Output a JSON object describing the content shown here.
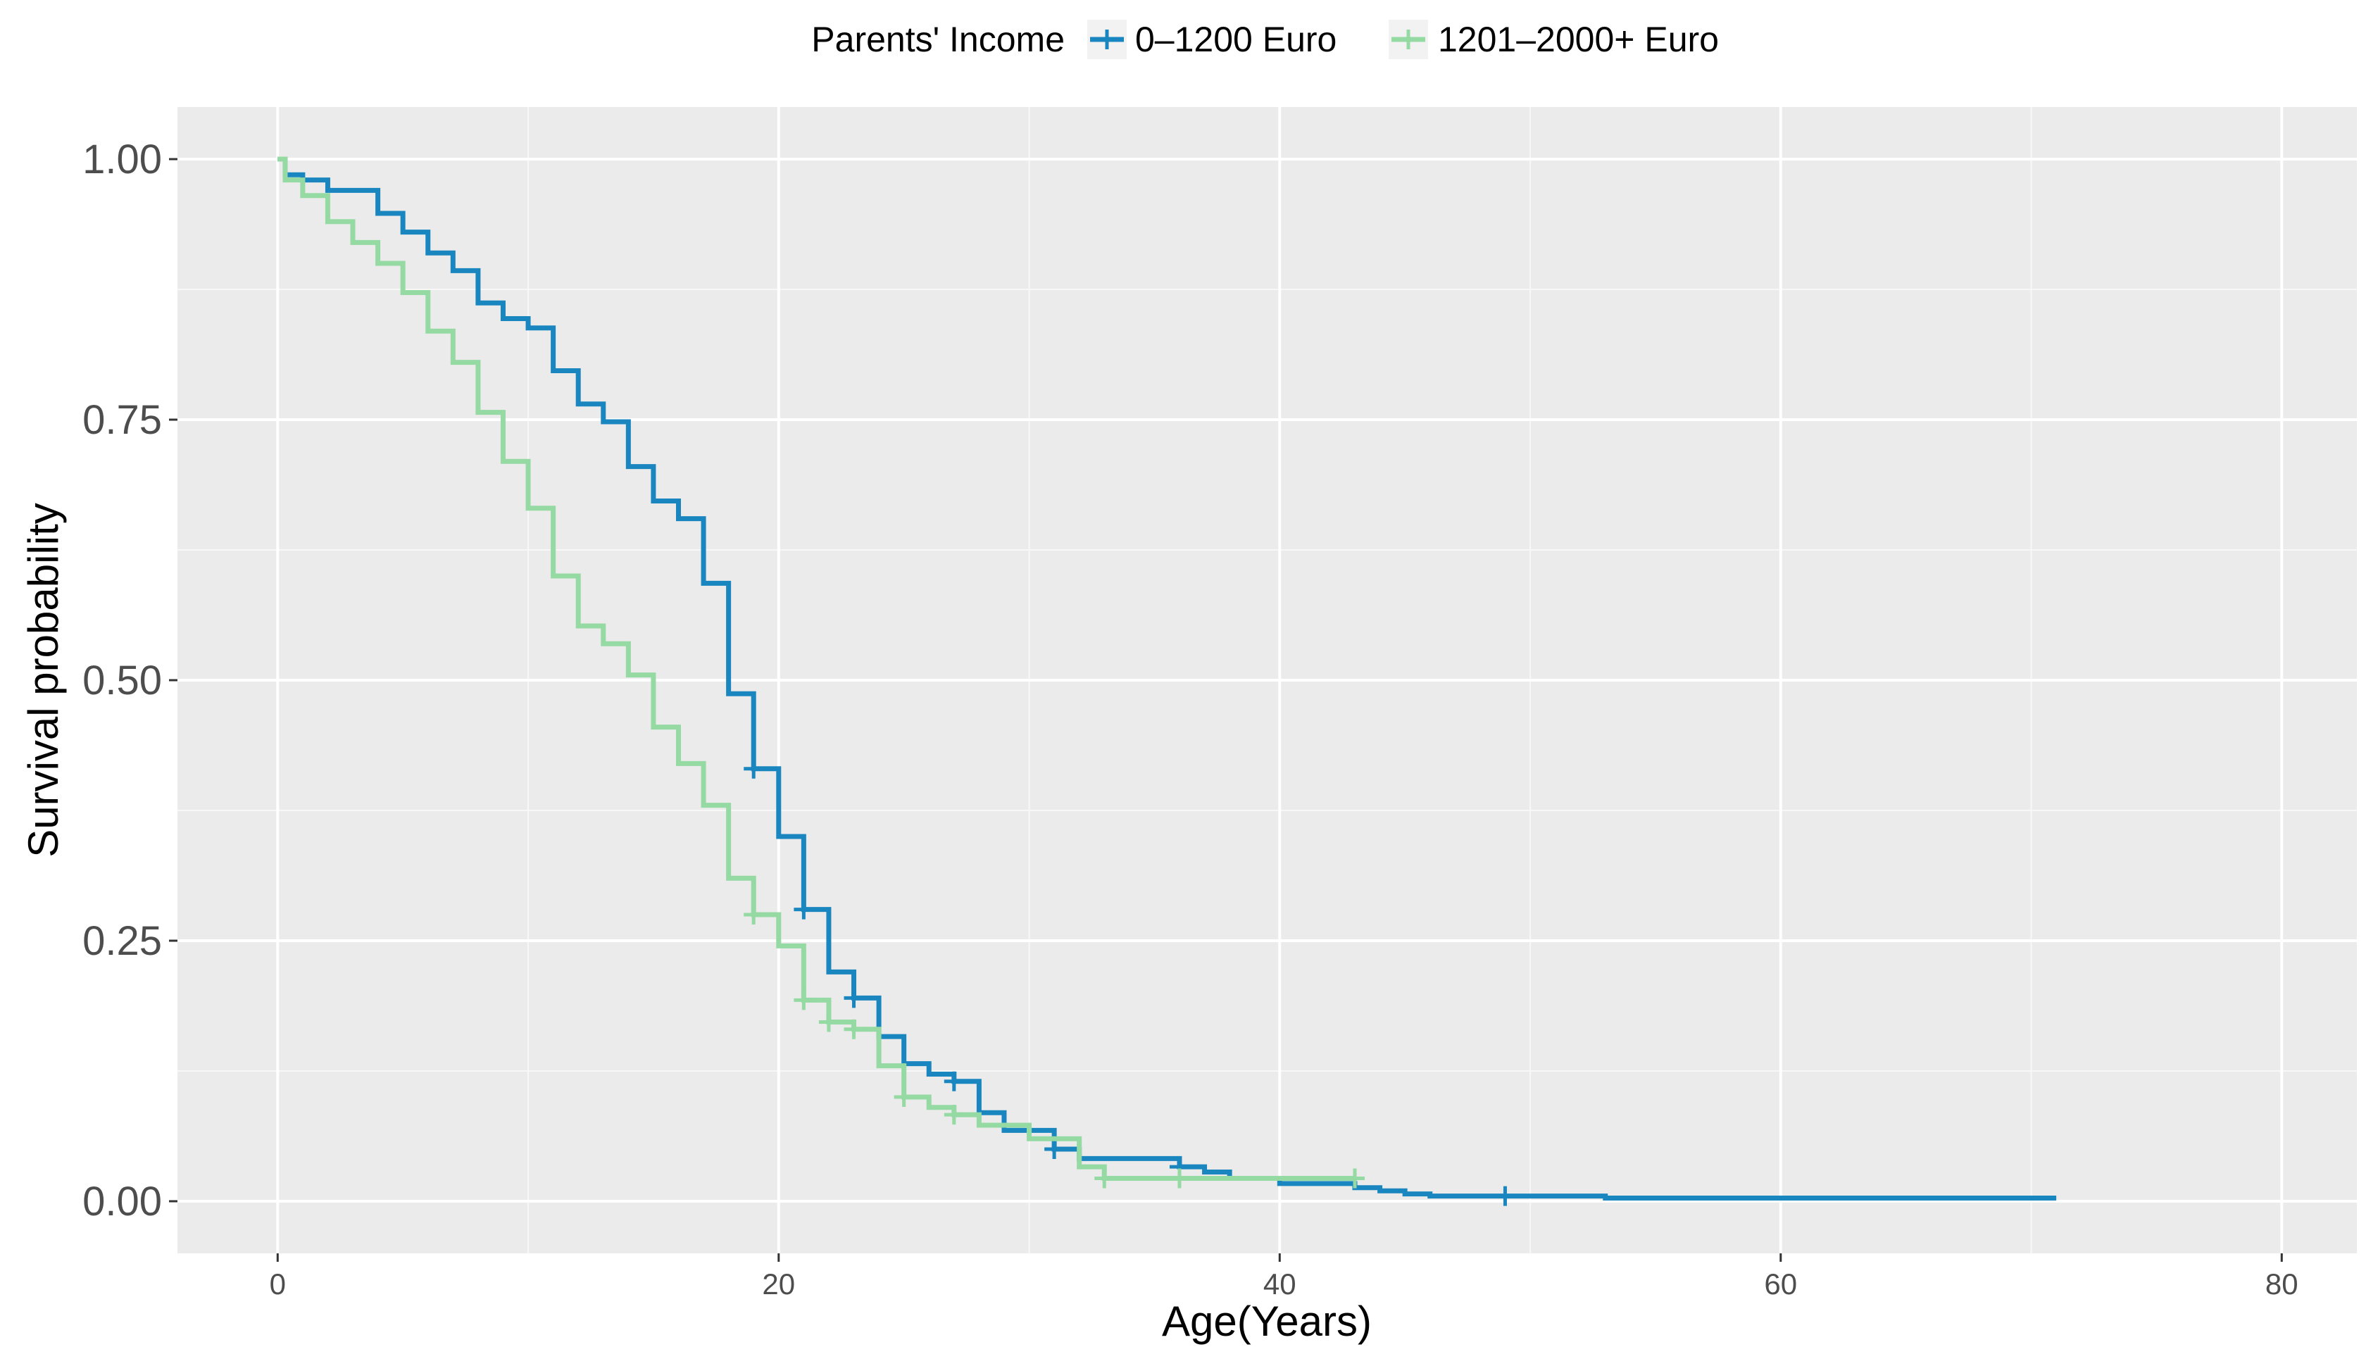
{
  "chart_data": {
    "type": "line",
    "title": "",
    "xlabel": "Age(Years)",
    "ylabel": "Survival probability",
    "xlim": [
      -4,
      83
    ],
    "ylim": [
      -0.05,
      1.05
    ],
    "x_ticks": [
      0,
      20,
      40,
      60,
      80
    ],
    "x_tick_labels": [
      "0",
      "20",
      "40",
      "60",
      "80"
    ],
    "y_ticks": [
      0,
      0.25,
      0.5,
      0.75,
      1.0
    ],
    "y_tick_labels": [
      "0.00",
      "0.25",
      "0.50",
      "0.75",
      "1.00"
    ],
    "grid": true,
    "step": true,
    "legend": {
      "title": "Parents' Income",
      "position": "top"
    },
    "series": [
      {
        "name": "0–1200 Euro",
        "color": "#1a86c0",
        "x": [
          0,
          0.3,
          1,
          2,
          4,
          5,
          6,
          7,
          8,
          9,
          10,
          11,
          12,
          13,
          14,
          15,
          16,
          17,
          18,
          19,
          20,
          21,
          22,
          23,
          24,
          25,
          26,
          27,
          28,
          29,
          31,
          32,
          36,
          37,
          38,
          40,
          43,
          44,
          45,
          46,
          53,
          71
        ],
        "y": [
          1.0,
          0.985,
          0.98,
          0.97,
          0.948,
          0.93,
          0.91,
          0.893,
          0.862,
          0.847,
          0.838,
          0.797,
          0.765,
          0.748,
          0.705,
          0.672,
          0.655,
          0.593,
          0.487,
          0.415,
          0.35,
          0.28,
          0.22,
          0.195,
          0.158,
          0.132,
          0.122,
          0.115,
          0.085,
          0.068,
          0.05,
          0.041,
          0.033,
          0.028,
          0.022,
          0.017,
          0.013,
          0.01,
          0.007,
          0.005,
          0.003,
          0.003
        ],
        "censor_x": [
          19,
          21,
          23,
          27,
          31,
          36,
          49
        ],
        "censor_y": [
          0.415,
          0.28,
          0.195,
          0.115,
          0.05,
          0.033,
          0.005
        ]
      },
      {
        "name": "1201–2000+ Euro",
        "color": "#95d9a3",
        "x": [
          0,
          0.3,
          1,
          2,
          3,
          4,
          5,
          6,
          7,
          8,
          9,
          10,
          11,
          12,
          13,
          14,
          15,
          16,
          17,
          18,
          19,
          20,
          21,
          22,
          23,
          24,
          25,
          26,
          27,
          28,
          30,
          32,
          33,
          43
        ],
        "y": [
          1.0,
          0.98,
          0.965,
          0.94,
          0.92,
          0.9,
          0.872,
          0.835,
          0.805,
          0.757,
          0.71,
          0.665,
          0.6,
          0.552,
          0.535,
          0.505,
          0.455,
          0.42,
          0.38,
          0.31,
          0.275,
          0.245,
          0.193,
          0.172,
          0.165,
          0.13,
          0.1,
          0.09,
          0.083,
          0.073,
          0.06,
          0.033,
          0.022,
          0.022
        ],
        "censor_x": [
          19,
          21,
          22,
          23,
          25,
          27,
          33,
          36,
          43
        ],
        "censor_y": [
          0.275,
          0.193,
          0.172,
          0.165,
          0.1,
          0.083,
          0.022,
          0.022,
          0.022
        ]
      }
    ]
  }
}
